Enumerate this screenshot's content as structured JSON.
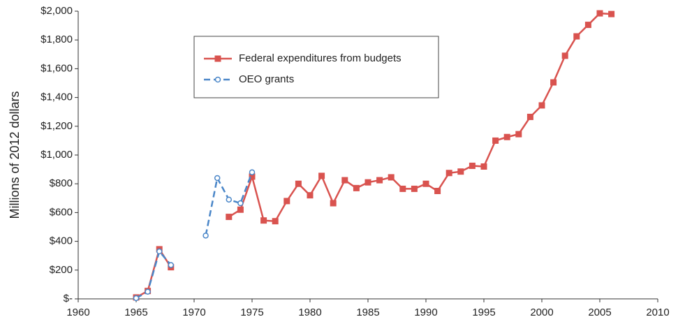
{
  "chart_data": {
    "type": "line",
    "y_label": "Millions of 2012 dollars",
    "x": [
      1965,
      1966,
      1967,
      1968,
      1969,
      1970,
      1971,
      1972,
      1973,
      1974,
      1975,
      1976,
      1977,
      1978,
      1979,
      1980,
      1981,
      1982,
      1983,
      1984,
      1985,
      1986,
      1987,
      1988,
      1989,
      1990,
      1991,
      1992,
      1993,
      1994,
      1995,
      1996,
      1997,
      1998,
      1999,
      2000,
      2001,
      2002,
      2003,
      2004,
      2005,
      2006
    ],
    "series": [
      {
        "name": "Federal expenditures from budgets",
        "color": "#d9534f",
        "marker": "square",
        "dashed": false,
        "values": [
          10,
          55,
          345,
          220,
          null,
          null,
          null,
          null,
          570,
          620,
          850,
          545,
          540,
          680,
          800,
          720,
          855,
          665,
          825,
          770,
          810,
          825,
          845,
          765,
          765,
          800,
          750,
          875,
          885,
          925,
          920,
          1100,
          1125,
          1145,
          1265,
          1345,
          1505,
          1690,
          1825,
          1905,
          1985,
          1980
        ]
      },
      {
        "name": "OEO grants",
        "color": "#4a86c8",
        "marker": "circle",
        "dashed": true,
        "values": [
          5,
          50,
          330,
          235,
          null,
          null,
          440,
          840,
          690,
          665,
          880,
          null,
          null,
          null,
          null,
          null,
          null,
          null,
          null,
          null,
          null,
          null,
          null,
          null,
          null,
          null,
          null,
          null,
          null,
          null,
          null,
          null,
          null,
          null,
          null,
          null,
          null,
          null,
          null,
          null,
          null,
          null
        ]
      }
    ],
    "xlim": [
      1960,
      2010
    ],
    "xticks": [
      1960,
      1965,
      1970,
      1975,
      1980,
      1985,
      1990,
      1995,
      2000,
      2005,
      2010
    ],
    "ylim": [
      0,
      2000
    ],
    "yticks": [
      {
        "value": 0,
        "label": "$-"
      },
      {
        "value": 200,
        "label": "$200"
      },
      {
        "value": 400,
        "label": "$400"
      },
      {
        "value": 600,
        "label": "$600"
      },
      {
        "value": 800,
        "label": "$800"
      },
      {
        "value": 1000,
        "label": "$1,000"
      },
      {
        "value": 1200,
        "label": "$1,200"
      },
      {
        "value": 1400,
        "label": "$1,400"
      },
      {
        "value": 1600,
        "label": "$1,600"
      },
      {
        "value": 1800,
        "label": "$1,800"
      },
      {
        "value": 2000,
        "label": "$2,000"
      }
    ],
    "grid": false
  }
}
